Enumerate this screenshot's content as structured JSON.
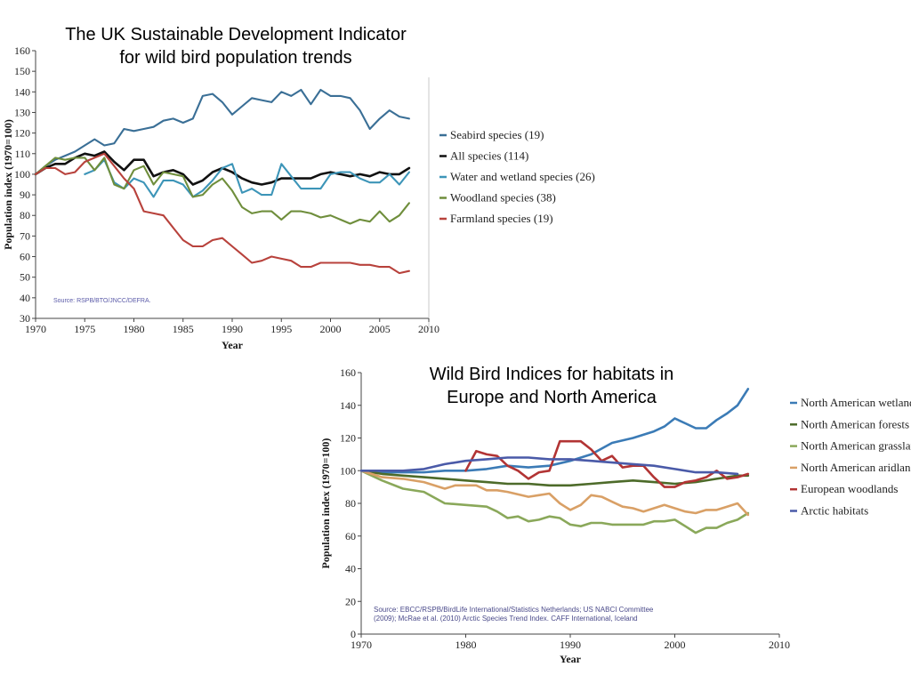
{
  "chart_data": [
    {
      "type": "line",
      "title": "The UK Sustainable Development Indicator for wild bird population trends",
      "xlabel": "Year",
      "ylabel": "Population index (1970=100)",
      "xlim": [
        1970,
        2010
      ],
      "ylim": [
        30,
        160
      ],
      "xticks": [
        1970,
        1975,
        1980,
        1985,
        1990,
        1995,
        2000,
        2005,
        2010
      ],
      "yticks": [
        30,
        40,
        50,
        60,
        70,
        80,
        90,
        100,
        110,
        120,
        130,
        140,
        150,
        160
      ],
      "grid": false,
      "legend": "right",
      "source": "Source: RSPB/BTO/JNCC/DEFRA.",
      "series": [
        {
          "name": "Seabird species (19)",
          "color": "#3a6f96",
          "x": [
            1970,
            1971,
            1972,
            1973,
            1974,
            1975,
            1976,
            1977,
            1978,
            1979,
            1980,
            1981,
            1982,
            1983,
            1984,
            1985,
            1986,
            1987,
            1988,
            1989,
            1990,
            1991,
            1992,
            1993,
            1994,
            1995,
            1996,
            1997,
            1998,
            1999,
            2000,
            2001,
            2002,
            2003,
            2004,
            2005,
            2006,
            2007,
            2008
          ],
          "y": [
            100,
            104,
            107,
            109,
            111,
            114,
            117,
            114,
            115,
            122,
            121,
            122,
            123,
            126,
            127,
            125,
            127,
            138,
            139,
            135,
            129,
            133,
            137,
            136,
            135,
            140,
            138,
            141,
            134,
            141,
            138,
            138,
            137,
            131,
            122,
            127,
            131,
            128,
            127
          ]
        },
        {
          "name": "All species (114)",
          "color": "#111111",
          "width": 2.6,
          "x": [
            1970,
            1971,
            1972,
            1973,
            1974,
            1975,
            1976,
            1977,
            1978,
            1979,
            1980,
            1981,
            1982,
            1983,
            1984,
            1985,
            1986,
            1987,
            1988,
            1989,
            1990,
            1991,
            1992,
            1993,
            1994,
            1995,
            1996,
            1997,
            1998,
            1999,
            2000,
            2001,
            2002,
            2003,
            2004,
            2005,
            2006,
            2007,
            2008
          ],
          "y": [
            100,
            103,
            105,
            105,
            108,
            110,
            109,
            111,
            106,
            102,
            107,
            107,
            99,
            101,
            102,
            100,
            95,
            97,
            101,
            103,
            101,
            98,
            96,
            95,
            96,
            98,
            98,
            98,
            98,
            100,
            101,
            100,
            99,
            100,
            99,
            101,
            100,
            100,
            103
          ]
        },
        {
          "name": "Water and wetland species (26)",
          "color": "#3d95b8",
          "x": [
            1975,
            1976,
            1977,
            1978,
            1979,
            1980,
            1981,
            1982,
            1983,
            1984,
            1985,
            1986,
            1987,
            1988,
            1989,
            1990,
            1991,
            1992,
            1993,
            1994,
            1995,
            1996,
            1997,
            1998,
            1999,
            2000,
            2001,
            2002,
            2003,
            2004,
            2005,
            2006,
            2007,
            2008
          ],
          "y": [
            100,
            102,
            107,
            96,
            93,
            98,
            96,
            89,
            97,
            97,
            95,
            89,
            92,
            97,
            103,
            105,
            91,
            93,
            90,
            90,
            105,
            99,
            93,
            93,
            93,
            100,
            101,
            101,
            98,
            96,
            96,
            100,
            95,
            101
          ]
        },
        {
          "name": "Woodland species (38)",
          "color": "#6f8e3c",
          "x": [
            1970,
            1971,
            1972,
            1973,
            1974,
            1975,
            1976,
            1977,
            1978,
            1979,
            1980,
            1981,
            1982,
            1983,
            1984,
            1985,
            1986,
            1987,
            1988,
            1989,
            1990,
            1991,
            1992,
            1993,
            1994,
            1995,
            1996,
            1997,
            1998,
            1999,
            2000,
            2001,
            2002,
            2003,
            2004,
            2005,
            2006,
            2007,
            2008
          ],
          "y": [
            100,
            104,
            108,
            107,
            108,
            108,
            102,
            108,
            95,
            93,
            102,
            104,
            95,
            101,
            100,
            99,
            89,
            90,
            95,
            98,
            92,
            84,
            81,
            82,
            82,
            78,
            82,
            82,
            81,
            79,
            80,
            78,
            76,
            78,
            77,
            82,
            77,
            80,
            86
          ]
        },
        {
          "name": "Farmland species (19)",
          "color": "#b8423c",
          "x": [
            1970,
            1971,
            1972,
            1973,
            1974,
            1975,
            1976,
            1977,
            1978,
            1979,
            1980,
            1981,
            1982,
            1983,
            1984,
            1985,
            1986,
            1987,
            1988,
            1989,
            1990,
            1991,
            1992,
            1993,
            1994,
            1995,
            1996,
            1997,
            1998,
            1999,
            2000,
            2001,
            2002,
            2003,
            2004,
            2005,
            2006,
            2007,
            2008
          ],
          "y": [
            100,
            103,
            103,
            100,
            101,
            106,
            108,
            110,
            104,
            98,
            93,
            82,
            81,
            80,
            74,
            68,
            65,
            65,
            68,
            69,
            65,
            61,
            57,
            58,
            60,
            59,
            58,
            55,
            55,
            57,
            57,
            57,
            57,
            56,
            56,
            55,
            55,
            52,
            53
          ]
        }
      ]
    },
    {
      "type": "line",
      "title": "Wild Bird Indices for habitats in Europe and North America",
      "xlabel": "Year",
      "ylabel": "Population index (1970=100)",
      "xlim": [
        1970,
        2010
      ],
      "ylim": [
        0,
        160
      ],
      "xticks": [
        1970,
        1980,
        1990,
        2000,
        2010
      ],
      "yticks": [
        0,
        20,
        40,
        60,
        80,
        100,
        120,
        140,
        160
      ],
      "grid": false,
      "legend": "right",
      "source": "Source: EBCC/RSPB/BirdLife International/Statistics Netherlands; US NABCI Committee (2009); McRae et al. (2010) Arctic Species Trend Index. CAFF International, Iceland",
      "source_lines": [
        "Source: EBCC/RSPB/BirdLife International/Statistics Netherlands; US NABCI Committee",
        "(2009); McRae et al. (2010) Arctic Species Trend Index. CAFF International, Iceland"
      ],
      "series": [
        {
          "name": "North American wetlands",
          "color": "#3b7bb6",
          "x": [
            1970,
            1972,
            1974,
            1976,
            1978,
            1980,
            1982,
            1984,
            1986,
            1988,
            1990,
            1992,
            1994,
            1996,
            1998,
            1999,
            2000,
            2001,
            2002,
            2003,
            2004,
            2005,
            2006,
            2007
          ],
          "y": [
            100,
            99,
            99,
            99,
            100,
            100,
            101,
            103,
            102,
            103,
            106,
            110,
            117,
            120,
            124,
            127,
            132,
            129,
            126,
            126,
            131,
            135,
            140,
            150
          ]
        },
        {
          "name": "North American forests",
          "color": "#4d6b2a",
          "x": [
            1970,
            1972,
            1974,
            1976,
            1978,
            1980,
            1982,
            1984,
            1986,
            1988,
            1990,
            1992,
            1994,
            1996,
            1998,
            2000,
            2002,
            2004,
            2006,
            2007
          ],
          "y": [
            100,
            98,
            97,
            96,
            95,
            94,
            93,
            92,
            92,
            91,
            91,
            92,
            93,
            94,
            93,
            92,
            93,
            95,
            97,
            97
          ]
        },
        {
          "name": "North American grasslands",
          "color": "#8aa85a",
          "x": [
            1970,
            1972,
            1974,
            1976,
            1978,
            1980,
            1982,
            1983,
            1984,
            1985,
            1986,
            1987,
            1988,
            1989,
            1990,
            1991,
            1992,
            1993,
            1994,
            1995,
            1996,
            1997,
            1998,
            1999,
            2000,
            2001,
            2002,
            2003,
            2004,
            2005,
            2006,
            2007
          ],
          "y": [
            100,
            94,
            89,
            87,
            80,
            79,
            78,
            75,
            71,
            72,
            69,
            70,
            72,
            71,
            67,
            66,
            68,
            68,
            67,
            67,
            67,
            67,
            69,
            69,
            70,
            66,
            62,
            65,
            65,
            68,
            70,
            74
          ]
        },
        {
          "name": "North American aridlands",
          "color": "#d9a066",
          "x": [
            1970,
            1972,
            1974,
            1976,
            1978,
            1979,
            1980,
            1981,
            1982,
            1983,
            1984,
            1986,
            1987,
            1988,
            1989,
            1990,
            1991,
            1992,
            1993,
            1994,
            1995,
            1996,
            1997,
            1998,
            1999,
            2000,
            2001,
            2002,
            2003,
            2004,
            2005,
            2006,
            2007
          ],
          "y": [
            100,
            96,
            95,
            93,
            89,
            91,
            91,
            91,
            88,
            88,
            87,
            84,
            85,
            86,
            80,
            76,
            79,
            85,
            84,
            81,
            78,
            77,
            75,
            77,
            79,
            77,
            75,
            74,
            76,
            76,
            78,
            80,
            73
          ]
        },
        {
          "name": "European woodlands",
          "color": "#b23434",
          "x": [
            1980,
            1981,
            1982,
            1983,
            1984,
            1985,
            1986,
            1987,
            1988,
            1989,
            1990,
            1991,
            1992,
            1993,
            1994,
            1995,
            1996,
            1997,
            1998,
            1999,
            2000,
            2001,
            2002,
            2003,
            2004,
            2005,
            2006,
            2007
          ],
          "y": [
            100,
            112,
            110,
            109,
            103,
            100,
            95,
            99,
            100,
            118,
            118,
            118,
            113,
            106,
            109,
            102,
            103,
            103,
            96,
            90,
            90,
            93,
            94,
            96,
            100,
            95,
            96,
            98
          ]
        },
        {
          "name": "Arctic habitats",
          "color": "#4a5aa8",
          "x": [
            1970,
            1972,
            1974,
            1976,
            1978,
            1980,
            1982,
            1984,
            1986,
            1988,
            1990,
            1992,
            1994,
            1996,
            1998,
            2000,
            2002,
            2004,
            2006
          ],
          "y": [
            100,
            100,
            100,
            101,
            104,
            106,
            107,
            108,
            108,
            107,
            107,
            106,
            105,
            104,
            103,
            101,
            99,
            99,
            98
          ]
        }
      ]
    }
  ]
}
